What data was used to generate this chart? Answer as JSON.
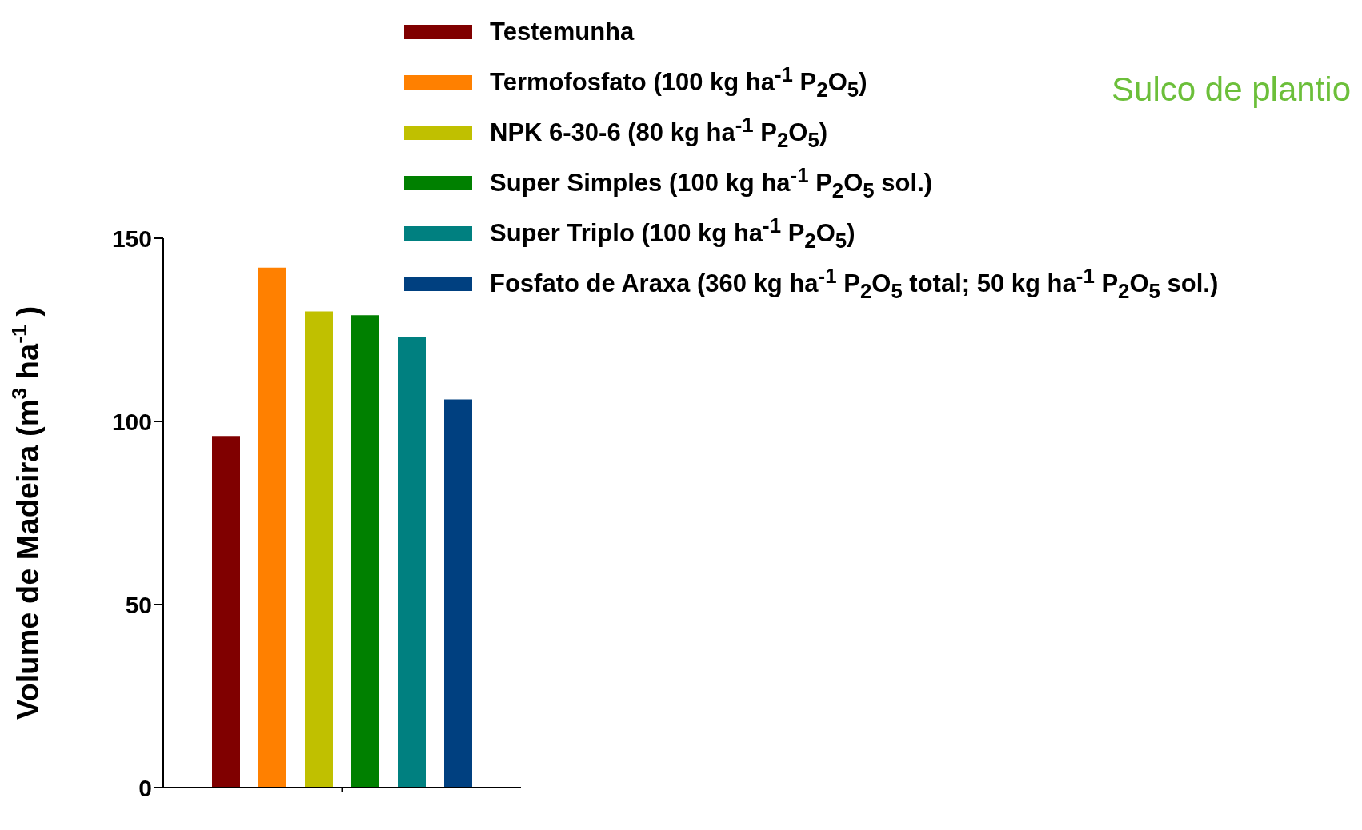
{
  "chart_data": {
    "type": "bar",
    "ylabel": "Volume de Madeira (m$^{3}$ ha$^{-1}$)",
    "categories": [
      null
    ],
    "series": [
      {
        "name": "Testemunha",
        "color": "#800000",
        "values": [
          96
        ]
      },
      {
        "name": "Termofosfato (100 kg ha$^{-1}$ P$_{2}$O$_{5}$)",
        "color": "#ff8000",
        "values": [
          142
        ]
      },
      {
        "name": "NPK 6-30-6 (80 kg ha$^{-1}$ P$_{2}$O$_{5}$)",
        "color": "#c0c000",
        "values": [
          130
        ]
      },
      {
        "name": "Super Simples (100 kg ha$^{-1}$ P$_{2}$O$_{5}$  sol.)",
        "color": "#008000",
        "values": [
          129
        ]
      },
      {
        "name": "Super Triplo (100 kg ha$^{-1}$ P$_{2}$O$_{5}$)",
        "color": "#008080",
        "values": [
          123
        ]
      },
      {
        "name": "Fosfato de Araxa (360 kg ha$^{-1}$ P$_{2}$O$_{5}$ total; 50 kg ha$^{-1}$ P$_{2}$O$_{5}$  sol.)",
        "color": "#004080",
        "values": [
          106
        ]
      }
    ],
    "ylim": [
      0,
      150
    ],
    "yticks": [
      0,
      50,
      100,
      150
    ],
    "grid": false,
    "legend": "top right",
    "annotations": [
      "Sulco de plantio"
    ]
  }
}
